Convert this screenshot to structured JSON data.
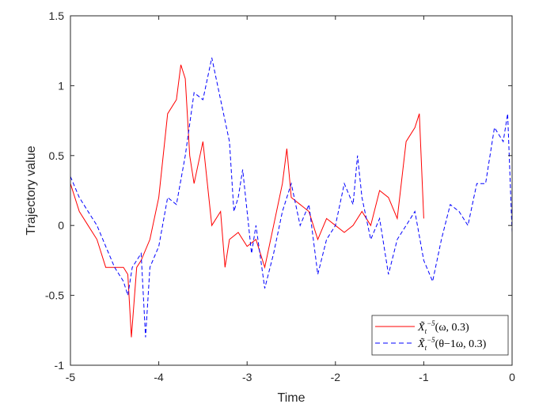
{
  "chart_data": {
    "type": "line",
    "title": "",
    "xlabel": "Time",
    "ylabel": "Trajectory value",
    "xlim": [
      -5,
      0
    ],
    "ylim": [
      -1,
      1.5
    ],
    "xticks": [
      -5,
      -4,
      -3,
      -2,
      -1,
      0
    ],
    "yticks": [
      -1,
      -0.5,
      0,
      0.5,
      1,
      1.5
    ],
    "xtick_labels": [
      "-5",
      "-4",
      "-3",
      "-2",
      "-1",
      "0"
    ],
    "ytick_labels": [
      "-1",
      "-0.5",
      "0",
      "0.5",
      "1",
      "1.5"
    ],
    "grid": false,
    "legend_position": "bottom-right",
    "series": [
      {
        "name": "X̃_t^{-5}(ω, 0.3)",
        "legend_main": "X̃",
        "legend_sub": "t",
        "legend_sup": "−5",
        "legend_args": "(ω, 0.3)",
        "color": "#ff0000",
        "style": "solid",
        "x": [
          -5,
          -4.9,
          -4.8,
          -4.7,
          -4.6,
          -4.5,
          -4.4,
          -4.35,
          -4.31,
          -4.25,
          -4.2,
          -4.1,
          -4.0,
          -3.9,
          -3.8,
          -3.75,
          -3.7,
          -3.65,
          -3.6,
          -3.5,
          -3.45,
          -3.4,
          -3.3,
          -3.25,
          -3.2,
          -3.1,
          -3.0,
          -2.9,
          -2.8,
          -2.7,
          -2.6,
          -2.55,
          -2.5,
          -2.4,
          -2.3,
          -2.2,
          -2.1,
          -2.0,
          -1.9,
          -1.8,
          -1.7,
          -1.6,
          -1.5,
          -1.4,
          -1.3,
          -1.2,
          -1.1,
          -1.05,
          -1.0
        ],
        "y": [
          0.3,
          0.1,
          0.0,
          -0.1,
          -0.3,
          -0.3,
          -0.3,
          -0.35,
          -0.8,
          -0.3,
          -0.25,
          -0.1,
          0.2,
          0.8,
          0.9,
          1.15,
          1.05,
          0.5,
          0.3,
          0.6,
          0.3,
          0.0,
          0.1,
          -0.3,
          -0.1,
          -0.05,
          -0.15,
          -0.1,
          -0.3,
          0.0,
          0.3,
          0.55,
          0.2,
          0.15,
          0.1,
          -0.1,
          0.05,
          0.0,
          -0.05,
          0.0,
          0.1,
          0.0,
          0.25,
          0.2,
          0.05,
          0.6,
          0.7,
          0.8,
          0.05
        ]
      },
      {
        "name": "X̃_t^{-5}(θ_{-1}ω, 0.3)",
        "legend_main": "X̃",
        "legend_sub": "t",
        "legend_sup": "−5",
        "legend_args": "(θ−1ω, 0.3)",
        "color": "#0000ff",
        "style": "dashed",
        "x": [
          -5,
          -4.9,
          -4.8,
          -4.7,
          -4.6,
          -4.5,
          -4.4,
          -4.35,
          -4.3,
          -4.2,
          -4.15,
          -4.1,
          -4.0,
          -3.9,
          -3.8,
          -3.7,
          -3.6,
          -3.5,
          -3.4,
          -3.3,
          -3.2,
          -3.15,
          -3.1,
          -3.05,
          -3.0,
          -2.95,
          -2.9,
          -2.8,
          -2.7,
          -2.6,
          -2.5,
          -2.4,
          -2.3,
          -2.2,
          -2.1,
          -2.0,
          -1.9,
          -1.8,
          -1.75,
          -1.7,
          -1.6,
          -1.5,
          -1.4,
          -1.3,
          -1.2,
          -1.1,
          -1.0,
          -0.9,
          -0.8,
          -0.7,
          -0.6,
          -0.5,
          -0.4,
          -0.3,
          -0.2,
          -0.1,
          -0.05,
          0
        ],
        "y": [
          0.35,
          0.2,
          0.1,
          0.0,
          -0.15,
          -0.3,
          -0.4,
          -0.5,
          -0.3,
          -0.2,
          -0.8,
          -0.3,
          -0.15,
          0.2,
          0.15,
          0.5,
          0.95,
          0.9,
          1.2,
          0.9,
          0.6,
          0.1,
          0.2,
          0.4,
          0.1,
          -0.2,
          0.0,
          -0.45,
          -0.2,
          0.1,
          0.3,
          0.0,
          0.15,
          -0.35,
          -0.1,
          0.0,
          0.3,
          0.15,
          0.5,
          0.2,
          -0.1,
          0.05,
          -0.35,
          -0.1,
          0.0,
          0.1,
          -0.25,
          -0.4,
          -0.1,
          0.15,
          0.1,
          0.0,
          0.3,
          0.3,
          0.7,
          0.6,
          0.8,
          -0.05
        ]
      }
    ]
  }
}
